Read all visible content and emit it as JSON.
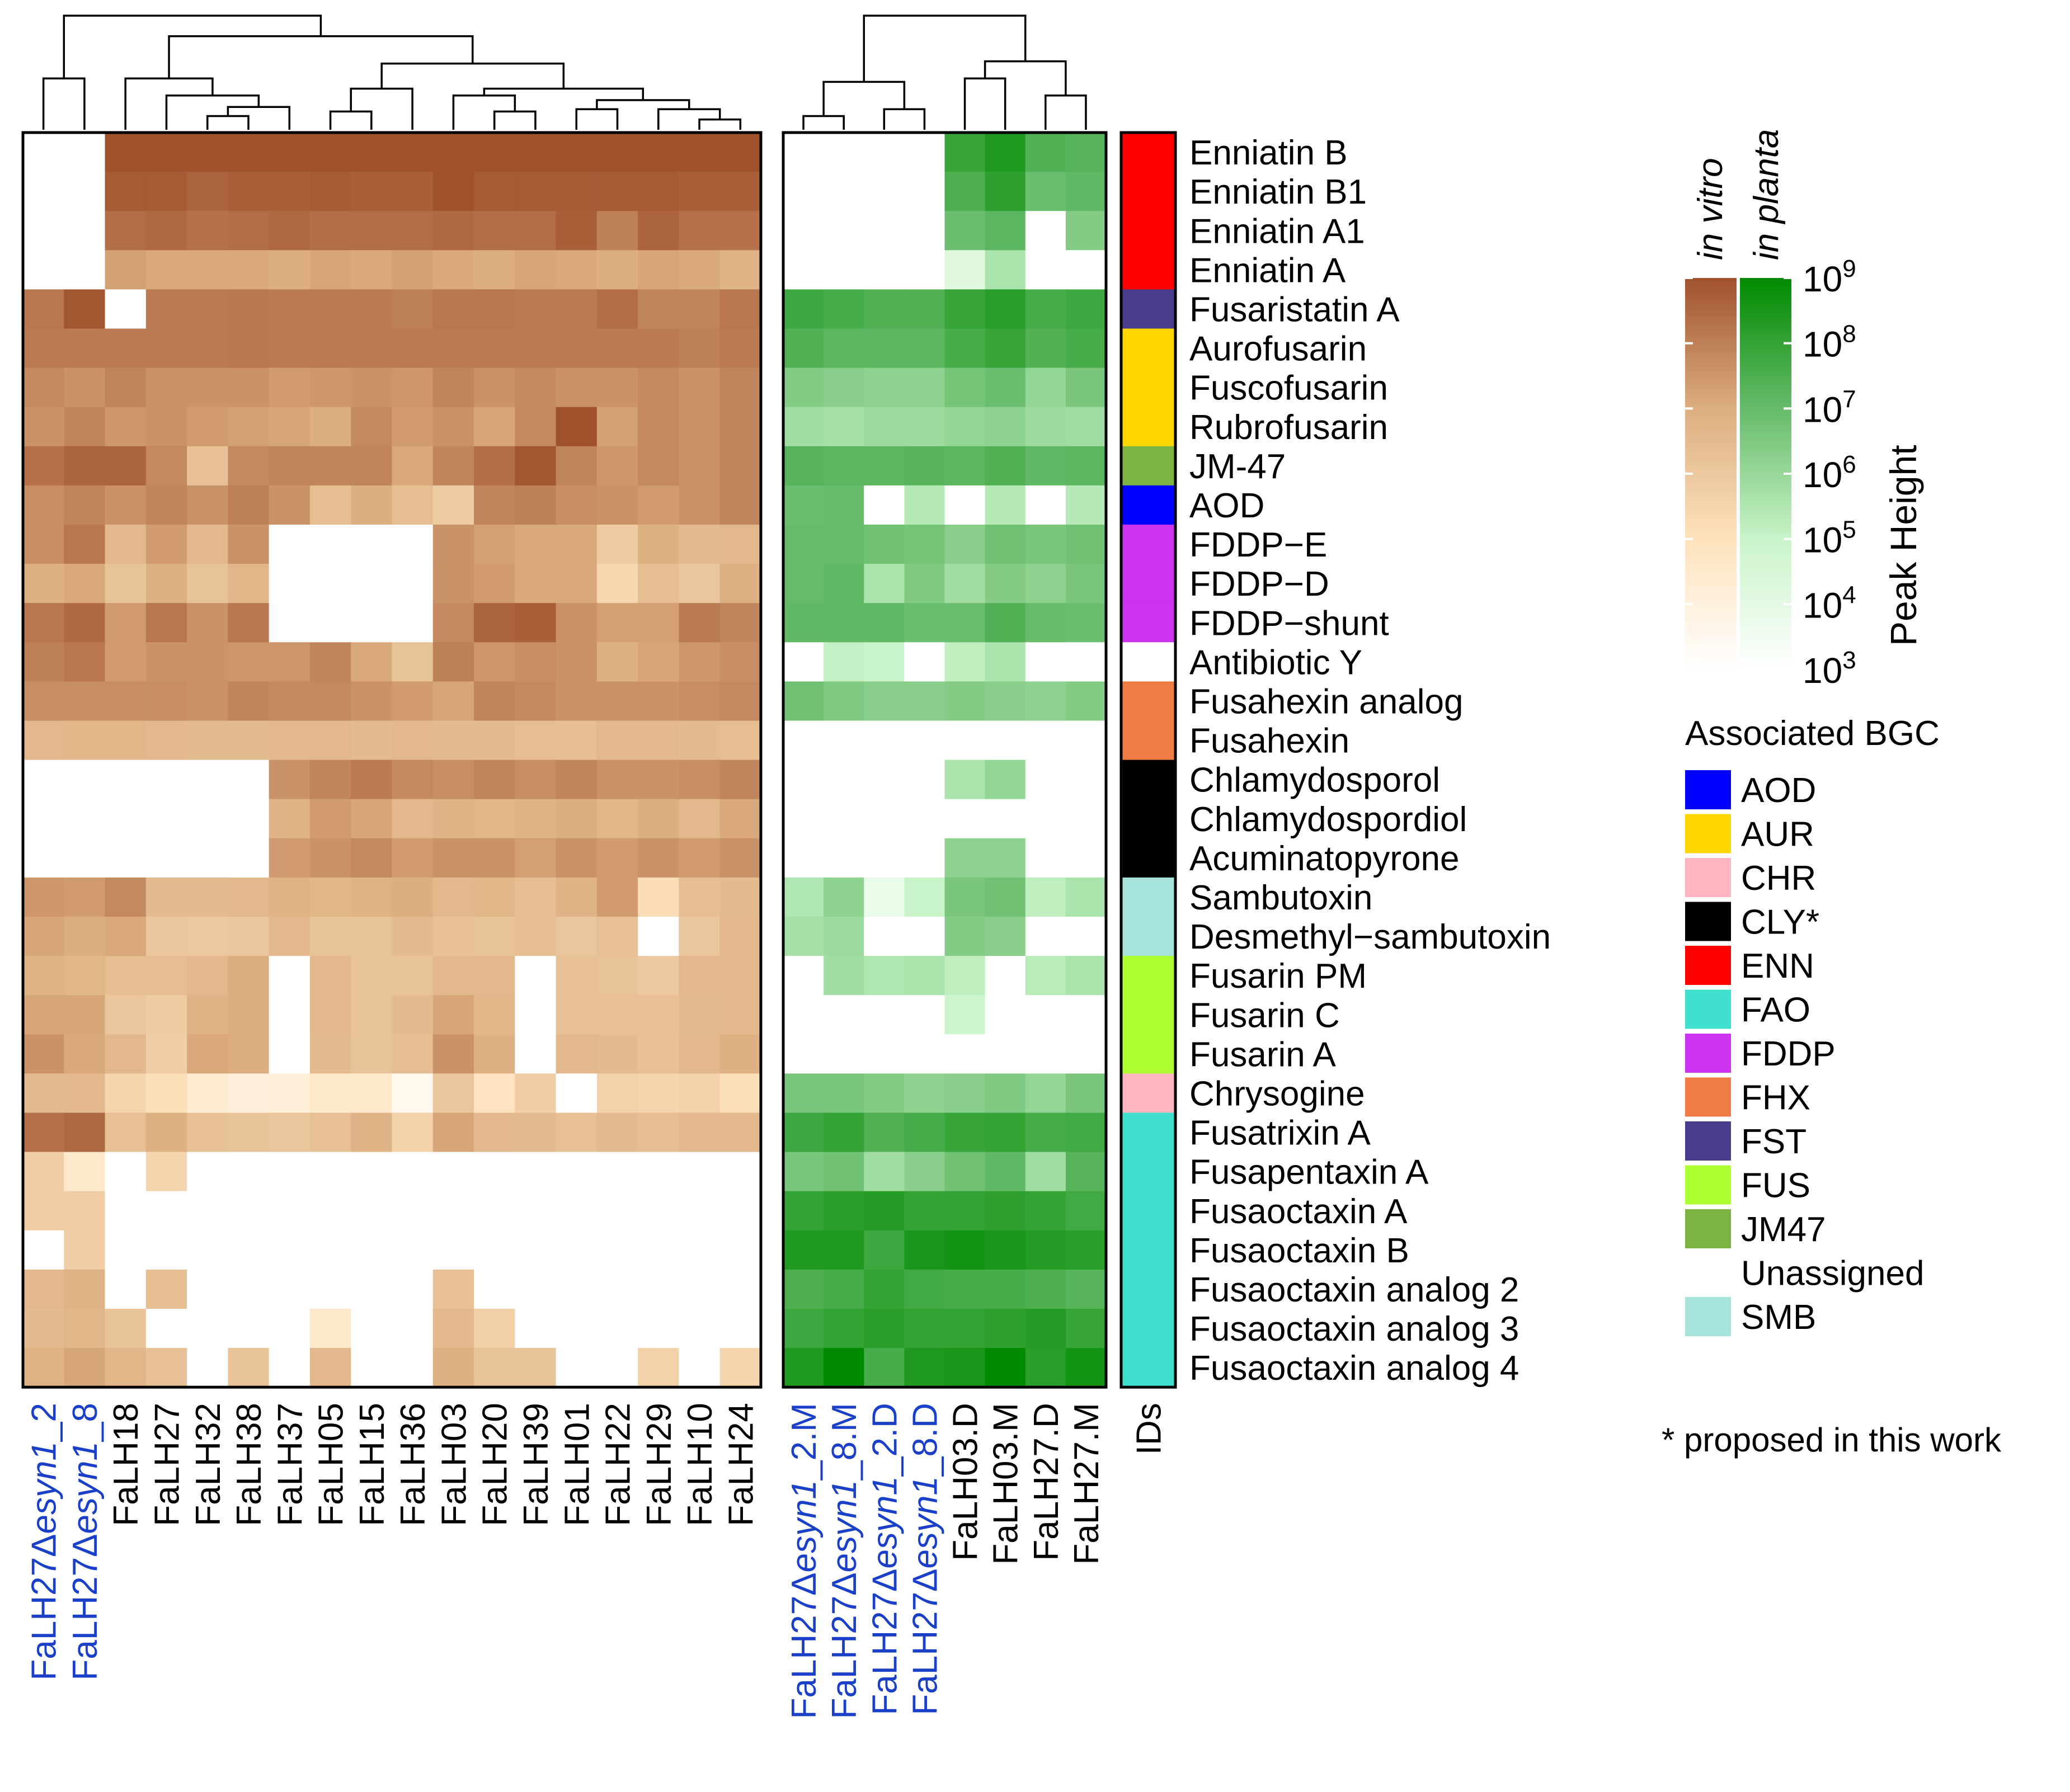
{
  "chart_data": {
    "type": "heatmap",
    "legend_scale": {
      "title": "Peak Height",
      "in_vitro_label": "in vitro",
      "in_planta_label": "in planta",
      "ticks": [
        {
          "base": "10",
          "exp": "9",
          "log": 9
        },
        {
          "base": "10",
          "exp": "8",
          "log": 8
        },
        {
          "base": "10",
          "exp": "7",
          "log": 7
        },
        {
          "base": "10",
          "exp": "6",
          "log": 6
        },
        {
          "base": "10",
          "exp": "5",
          "log": 5
        },
        {
          "base": "10",
          "exp": "4",
          "log": 4
        },
        {
          "base": "10",
          "exp": "3",
          "log": 3
        }
      ],
      "min_log": 3,
      "max_log": 9,
      "vitro_colors": [
        "#ffffff",
        "#fde2bc",
        "#dcae80",
        "#a0522d"
      ],
      "planta_colors": [
        "#ffffff",
        "#c9f4c8",
        "#66bb6a",
        "#008a00"
      ]
    },
    "rows": [
      "Enniatin B",
      "Enniatin B1",
      "Enniatin A1",
      "Enniatin A",
      "Fusaristatin A",
      "Aurofusarin",
      "Fuscofusarin",
      "Rubrofusarin",
      "JM-47",
      "AOD",
      "FDDP−E",
      "FDDP−D",
      "FDDP−shunt",
      "Antibiotic Y",
      "Fusahexin analog",
      "Fusahexin",
      "Chlamydosporol",
      "Chlamydospordiol",
      "Acuminatopyrone",
      "Sambutoxin",
      "Desmethyl−sambutoxin",
      "Fusarin PM",
      "Fusarin C",
      "Fusarin A",
      "Chrysogine",
      "Fusatrixin A",
      "Fusapentaxin A",
      "Fusaoctaxin A",
      "Fusaoctaxin B",
      "Fusaoctaxin analog 2",
      "Fusaoctaxin analog 3",
      "Fusaoctaxin analog 4"
    ],
    "row_bgc": [
      "ENN",
      "ENN",
      "ENN",
      "ENN",
      "FST",
      "AUR",
      "AUR",
      "AUR",
      "JM47",
      "AOD",
      "FDDP",
      "FDDP",
      "FDDP",
      "Unassigned",
      "FHX",
      "FHX",
      "CLY*",
      "CLY*",
      "CLY*",
      "SMB",
      "SMB",
      "FUS",
      "FUS",
      "FUS",
      "CHR",
      "FAO",
      "FAO",
      "FAO",
      "FAO",
      "FAO",
      "FAO",
      "FAO"
    ],
    "ids_label": "IDs",
    "in_vitro": {
      "columns": [
        {
          "prefix": "FaLH27",
          "delta": "Δ",
          "gene": "esyn1",
          "suffix": "_2",
          "mutant": true
        },
        {
          "prefix": "FaLH27",
          "delta": "Δ",
          "gene": "esyn1",
          "suffix": "_8",
          "mutant": true
        },
        {
          "prefix": "FaLH18",
          "mutant": false
        },
        {
          "prefix": "FaLH27",
          "mutant": false
        },
        {
          "prefix": "FaLH32",
          "mutant": false
        },
        {
          "prefix": "FaLH38",
          "mutant": false
        },
        {
          "prefix": "FaLH37",
          "mutant": false
        },
        {
          "prefix": "FaLH05",
          "mutant": false
        },
        {
          "prefix": "FaLH15",
          "mutant": false
        },
        {
          "prefix": "FaLH36",
          "mutant": false
        },
        {
          "prefix": "FaLH03",
          "mutant": false
        },
        {
          "prefix": "FaLH20",
          "mutant": false
        },
        {
          "prefix": "FaLH39",
          "mutant": false
        },
        {
          "prefix": "FaLH01",
          "mutant": false
        },
        {
          "prefix": "FaLH22",
          "mutant": false
        },
        {
          "prefix": "FaLH29",
          "mutant": false
        },
        {
          "prefix": "FaLH10",
          "mutant": false
        },
        {
          "prefix": "FaLH24",
          "mutant": false
        }
      ],
      "values": [
        [
          0,
          0,
          9,
          9,
          9,
          9,
          9,
          9,
          9,
          9,
          9,
          9,
          9,
          9,
          9,
          9,
          9,
          9
        ],
        [
          0,
          0,
          8.8,
          8.8,
          8.6,
          8.7,
          8.7,
          8.8,
          8.7,
          8.7,
          9,
          8.8,
          8.8,
          8.8,
          8.8,
          8.8,
          8.7,
          8.7
        ],
        [
          0,
          0,
          8.4,
          8.5,
          8.3,
          8.4,
          8.5,
          8.4,
          8.4,
          8.4,
          8.5,
          8.4,
          8.4,
          8.7,
          8,
          8.6,
          8.3,
          8.3
        ],
        [
          0,
          0,
          7.3,
          7.1,
          7.1,
          7.1,
          7,
          7.2,
          7.1,
          7.3,
          7.1,
          7,
          7.2,
          7.1,
          7,
          7.2,
          7.1,
          6.8
        ],
        [
          8.2,
          8.9,
          0,
          8.1,
          8.1,
          8.2,
          8.1,
          8.1,
          8.1,
          8,
          8.2,
          8.2,
          8.1,
          8.1,
          8.4,
          7.9,
          7.9,
          8.2
        ],
        [
          8.1,
          8.1,
          8.1,
          8.1,
          8.1,
          8.2,
          8.1,
          8.1,
          8.1,
          8.1,
          8.1,
          8.1,
          8.1,
          8.1,
          8.1,
          8.1,
          8,
          8.1
        ],
        [
          7.8,
          7.6,
          7.9,
          7.6,
          7.6,
          7.6,
          7.4,
          7.5,
          7.6,
          7.5,
          7.9,
          7.6,
          7.8,
          7.6,
          7.6,
          7.8,
          7.6,
          7.9
        ],
        [
          7.6,
          7.9,
          7.5,
          7.6,
          7.4,
          7.3,
          7.2,
          7,
          7.8,
          7.4,
          7.6,
          7.2,
          7.8,
          9,
          7.3,
          7.8,
          7.6,
          7.9
        ],
        [
          8.3,
          8.6,
          8.6,
          7.8,
          6.3,
          7.8,
          7.9,
          7.9,
          7.9,
          7.1,
          7.9,
          8.4,
          8.9,
          7.9,
          7.5,
          7.8,
          7.6,
          7.9
        ],
        [
          7.7,
          7.9,
          7.6,
          7.9,
          7.6,
          8,
          7.6,
          6.4,
          7,
          6.4,
          5.9,
          7.9,
          8,
          7.7,
          7.6,
          7.4,
          7.6,
          7.9
        ],
        [
          7.7,
          8.2,
          6.6,
          7.4,
          6.6,
          7.6,
          0,
          0,
          0,
          0,
          7.6,
          7.3,
          7.1,
          7.1,
          5.9,
          6.9,
          6.5,
          6.6
        ],
        [
          6.9,
          7.1,
          6.2,
          6.9,
          6.2,
          6.7,
          0,
          0,
          0,
          0,
          7.6,
          7.4,
          7.1,
          7.1,
          5.4,
          6.4,
          6.1,
          6.9
        ],
        [
          8.2,
          8.5,
          7.4,
          8.2,
          7.6,
          8.2,
          0,
          0,
          0,
          0,
          7.8,
          8.6,
          8.7,
          7.6,
          7.3,
          7.3,
          8.1,
          7.9
        ],
        [
          8,
          8.2,
          7.4,
          7.6,
          7.6,
          7.5,
          7.5,
          7.9,
          7.1,
          6.2,
          8,
          7.5,
          7.7,
          7.6,
          6.9,
          7.2,
          7.5,
          7.7
        ],
        [
          7.7,
          7.7,
          7.7,
          7.7,
          7.6,
          7.9,
          7.8,
          7.8,
          7.6,
          7.4,
          7.2,
          7.9,
          7.8,
          7.6,
          7.6,
          7.6,
          7.7,
          7.8
        ],
        [
          6.6,
          6.7,
          6.7,
          6.6,
          6.5,
          6.5,
          6.6,
          6.6,
          6.5,
          6.6,
          6.5,
          6.5,
          6.4,
          6.4,
          6.6,
          6.6,
          6.5,
          6.4
        ],
        [
          0,
          0,
          0,
          0,
          0,
          0,
          7.6,
          7.9,
          8.1,
          7.8,
          7.7,
          7.9,
          7.7,
          7.9,
          7.6,
          7.6,
          7.7,
          7.9
        ],
        [
          0,
          0,
          0,
          0,
          0,
          0,
          6.8,
          7.4,
          7.2,
          6.6,
          6.8,
          6.7,
          6.8,
          7,
          6.7,
          7,
          6.6,
          7.1
        ],
        [
          0,
          0,
          0,
          0,
          0,
          0,
          7.4,
          7.6,
          7.8,
          7.4,
          7.6,
          7.6,
          7.3,
          7.6,
          7.4,
          7.6,
          7.4,
          7.6
        ],
        [
          7.5,
          7.4,
          7.8,
          6.5,
          6.5,
          6.6,
          6.8,
          6.7,
          6.8,
          7,
          6.6,
          6.7,
          6.4,
          6.8,
          7.4,
          5.2,
          6.4,
          6.5
        ],
        [
          7.2,
          7,
          7.1,
          6.1,
          6,
          6.1,
          6.6,
          6.2,
          6.2,
          6.5,
          6.3,
          6.2,
          6.4,
          6.1,
          6.3,
          0,
          6.1,
          6.6
        ],
        [
          6.8,
          6.7,
          6.4,
          6.4,
          6.6,
          7,
          0,
          6.6,
          6.2,
          6.2,
          6.6,
          6.6,
          0,
          6.3,
          6.2,
          6,
          6.6,
          6.6
        ],
        [
          7.2,
          7.2,
          6.1,
          5.9,
          6.8,
          7,
          0,
          6.6,
          6.2,
          6.5,
          7.2,
          6.7,
          0,
          6.3,
          6.3,
          6.3,
          6.5,
          6.6
        ],
        [
          7.6,
          7.1,
          6.6,
          5.8,
          7.1,
          7,
          0,
          6.5,
          6.2,
          6.4,
          7.6,
          6.9,
          0,
          6.6,
          6.5,
          6.3,
          6.6,
          6.9
        ],
        [
          6.5,
          6.6,
          5.5,
          5.1,
          4.3,
          4.1,
          4.2,
          4.6,
          4.5,
          3.5,
          6.1,
          4.9,
          5.8,
          0,
          5.6,
          5.5,
          5.6,
          5.1
        ],
        [
          8.3,
          8.5,
          6.3,
          6.9,
          6.3,
          6.2,
          6.1,
          6.3,
          6.8,
          5.6,
          7.2,
          6.6,
          6.5,
          6.3,
          6.5,
          6.4,
          6.6,
          6.6
        ],
        [
          5.8,
          4.5,
          0,
          5.5,
          0,
          0,
          0,
          0,
          0,
          0,
          0,
          0,
          0,
          0,
          0,
          0,
          0,
          0
        ],
        [
          5.8,
          5.8,
          0,
          0,
          0,
          0,
          0,
          0,
          0,
          0,
          0,
          0,
          0,
          0,
          0,
          0,
          0,
          0
        ],
        [
          0,
          5.8,
          0,
          0,
          0,
          0,
          0,
          0,
          0,
          0,
          0,
          0,
          0,
          0,
          0,
          0,
          0,
          0
        ],
        [
          6.6,
          6.8,
          0,
          6.4,
          0,
          0,
          0,
          0,
          0,
          0,
          6.3,
          0,
          0,
          0,
          0,
          0,
          0,
          0
        ],
        [
          6.5,
          6.7,
          6.2,
          0,
          0,
          0,
          0,
          4.5,
          0,
          0,
          6.6,
          5.7,
          0,
          0,
          0,
          0,
          0,
          0
        ],
        [
          6.8,
          7.2,
          6.7,
          6.3,
          0,
          6.2,
          0,
          6.6,
          0,
          0,
          6.9,
          6.2,
          6.2,
          0,
          0,
          5.6,
          0,
          5.5
        ]
      ]
    },
    "in_planta": {
      "columns": [
        {
          "prefix": "FaLH27",
          "delta": "Δ",
          "gene": "esyn1",
          "suffix": "_2.M",
          "mutant": true
        },
        {
          "prefix": "FaLH27",
          "delta": "Δ",
          "gene": "esyn1",
          "suffix": "_8.M",
          "mutant": true
        },
        {
          "prefix": "FaLH27",
          "delta": "Δ",
          "gene": "esyn1",
          "suffix": "_2.D",
          "mutant": true
        },
        {
          "prefix": "FaLH27",
          "delta": "Δ",
          "gene": "esyn1",
          "suffix": "_8.D",
          "mutant": true
        },
        {
          "prefix": "FaLH03.D",
          "mutant": false
        },
        {
          "prefix": "FaLH03.M",
          "mutant": false
        },
        {
          "prefix": "FaLH27.D",
          "mutant": false
        },
        {
          "prefix": "FaLH27.M",
          "mutant": false
        }
      ],
      "values": [
        [
          0,
          0,
          0,
          0,
          7.9,
          8.4,
          7.4,
          7.3
        ],
        [
          0,
          0,
          0,
          0,
          7.5,
          8.1,
          6.9,
          7.1
        ],
        [
          0,
          0,
          0,
          0,
          6.9,
          7.2,
          0,
          6.4
        ],
        [
          0,
          0,
          0,
          0,
          4.2,
          5.6,
          0,
          0
        ],
        [
          7.8,
          7.6,
          7.4,
          7.4,
          7.9,
          8.2,
          7.6,
          7.8
        ],
        [
          7.4,
          7.2,
          7.2,
          7.2,
          7.6,
          7.9,
          7.4,
          7.6
        ],
        [
          6.4,
          6.3,
          6.2,
          6.2,
          6.7,
          6.9,
          6.1,
          6.6
        ],
        [
          5.8,
          5.7,
          5.9,
          5.9,
          6.1,
          6.2,
          5.9,
          5.8
        ],
        [
          7.3,
          7.2,
          7.2,
          7.3,
          7.2,
          7.4,
          7.1,
          7.2
        ],
        [
          6.9,
          7,
          0,
          5.4,
          0,
          5.4,
          0,
          5.4
        ],
        [
          7,
          7,
          6.8,
          6.7,
          6.3,
          6.8,
          6.6,
          6.8
        ],
        [
          7,
          7.1,
          5.6,
          6.5,
          5.8,
          6.4,
          6.2,
          6.6
        ],
        [
          7.1,
          7.1,
          7.1,
          6.9,
          6.9,
          7.4,
          7,
          6.9
        ],
        [
          0,
          5.1,
          5,
          0,
          5.2,
          5.6,
          0,
          0
        ],
        [
          6.8,
          6.5,
          6.3,
          6.3,
          6.4,
          6.3,
          6.2,
          6.4
        ],
        [
          0,
          0,
          0,
          0,
          0,
          0,
          0,
          0
        ],
        [
          0,
          0,
          0,
          0,
          5.6,
          6.1,
          0,
          0
        ],
        [
          0,
          0,
          0,
          0,
          0,
          0,
          0,
          0
        ],
        [
          0,
          0,
          0,
          0,
          6.2,
          6.2,
          0,
          0
        ],
        [
          5.5,
          6.2,
          3.8,
          5,
          6.6,
          6.8,
          5.2,
          5.6
        ],
        [
          5.7,
          5.9,
          0,
          0,
          6.4,
          6.3,
          0,
          0
        ],
        [
          0,
          5.8,
          5.5,
          5.6,
          5.2,
          0,
          5.3,
          5.6
        ],
        [
          0,
          0,
          0,
          0,
          4.9,
          0,
          0,
          0
        ],
        [
          0,
          0,
          0,
          0,
          0,
          0,
          0,
          0
        ],
        [
          6.6,
          6.6,
          6.4,
          6.2,
          6.3,
          6.5,
          6.1,
          6.6
        ],
        [
          7.8,
          8,
          7.4,
          7.6,
          7.9,
          8,
          7.6,
          7.7
        ],
        [
          6.6,
          6.8,
          5.8,
          6.3,
          6.8,
          7.1,
          5.8,
          7.3
        ],
        [
          8,
          8.2,
          8.3,
          8,
          8,
          8.1,
          8,
          7.7
        ],
        [
          8.4,
          8.4,
          7.8,
          8.5,
          8.6,
          8.5,
          8.3,
          8.2
        ],
        [
          7.5,
          7.6,
          8,
          7.7,
          7.6,
          7.6,
          7.5,
          7.3
        ],
        [
          7.8,
          8,
          8.2,
          8,
          8,
          8.1,
          8.3,
          7.9
        ],
        [
          8.4,
          9,
          7.6,
          8.4,
          8.5,
          9,
          8.2,
          8.6
        ]
      ]
    },
    "bgc_legend": {
      "title": "Associated BGC",
      "items": [
        {
          "label": "AOD",
          "color": "#0000ff"
        },
        {
          "label": "AUR",
          "color": "#ffd700"
        },
        {
          "label": "CHR",
          "color": "#ffb6c1"
        },
        {
          "label": "CLY*",
          "color": "#000000"
        },
        {
          "label": "ENN",
          "color": "#ff0000"
        },
        {
          "label": "FAO",
          "color": "#40e0d0"
        },
        {
          "label": "FDDP",
          "color": "#cc33ee"
        },
        {
          "label": "FHX",
          "color": "#f07c45"
        },
        {
          "label": "FST",
          "color": "#483d8b"
        },
        {
          "label": "FUS",
          "color": "#adff2f"
        },
        {
          "label": "JM47",
          "color": "#7cb342"
        },
        {
          "label": "Unassigned",
          "color": "#ffffff"
        },
        {
          "label": "SMB",
          "color": "#a6e3da"
        }
      ],
      "footnote": "* proposed in this work"
    },
    "label_colors": {
      "mutant": "#1a3fc9",
      "normal": "#000000"
    }
  }
}
